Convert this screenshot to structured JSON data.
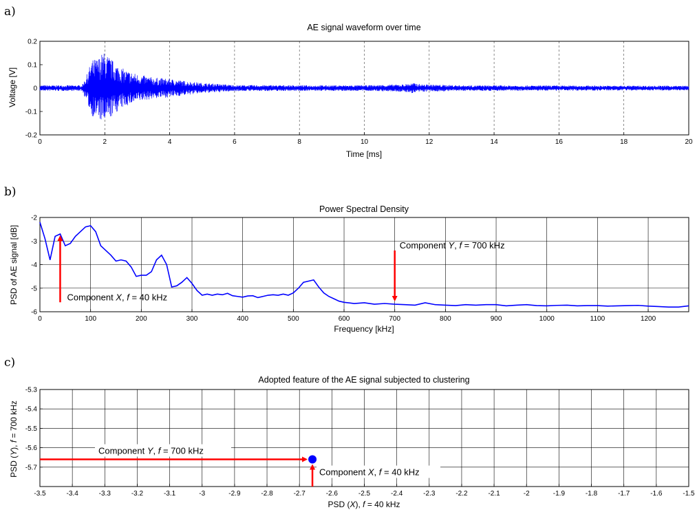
{
  "colors": {
    "series": "#0000ff",
    "arrow": "#ff0000",
    "grid": "#000000"
  },
  "chart_data": [
    {
      "panel_label": "a)",
      "type": "line",
      "title": "AE signal waveform over time",
      "xlabel": "Time [ms]",
      "ylabel": "Voltage [V]",
      "xlim": [
        0,
        20
      ],
      "ylim": [
        -0.2,
        0.2
      ],
      "xticks": [
        0,
        2,
        4,
        6,
        8,
        10,
        12,
        14,
        16,
        18,
        20
      ],
      "yticks": [
        -0.2,
        -0.1,
        0,
        0.1,
        0.2
      ],
      "grid": "dashed vertical",
      "envelope": {
        "t": [
          0,
          1.3,
          1.45,
          1.6,
          1.8,
          1.95,
          2.1,
          2.3,
          2.6,
          3.0,
          3.5,
          4.0,
          4.5,
          5.0,
          5.5,
          6.0,
          8.0,
          10.0,
          11.2,
          11.5,
          11.8,
          13.0,
          16.0,
          20.0
        ],
        "amplitude": [
          0.012,
          0.012,
          0.06,
          0.12,
          0.13,
          0.155,
          0.14,
          0.11,
          0.08,
          0.06,
          0.045,
          0.04,
          0.03,
          0.022,
          0.018,
          0.013,
          0.012,
          0.012,
          0.016,
          0.022,
          0.016,
          0.012,
          0.011,
          0.01
        ]
      }
    },
    {
      "panel_label": "b)",
      "type": "line",
      "title": "Power Spectral Density",
      "xlabel": "Frequency [kHz]",
      "ylabel": "PSD of AE signal [dB]",
      "xlim": [
        0,
        1280
      ],
      "ylim": [
        -6,
        -2
      ],
      "xticks": [
        0,
        100,
        200,
        300,
        400,
        500,
        600,
        700,
        800,
        900,
        1000,
        1100,
        1200
      ],
      "yticks": [
        -6,
        -5,
        -4,
        -3,
        -2
      ],
      "grid": "solid",
      "series": [
        {
          "x": [
            0,
            10,
            20,
            30,
            40,
            50,
            60,
            70,
            80,
            90,
            100,
            110,
            120,
            130,
            140,
            150,
            160,
            170,
            180,
            190,
            200,
            210,
            220,
            230,
            240,
            250,
            260,
            270,
            280,
            290,
            300,
            310,
            320,
            330,
            340,
            350,
            360,
            370,
            380,
            390,
            400,
            410,
            420,
            430,
            440,
            450,
            460,
            470,
            480,
            490,
            500,
            510,
            520,
            530,
            540,
            550,
            560,
            570,
            580,
            590,
            600,
            620,
            640,
            660,
            680,
            700,
            720,
            740,
            760,
            780,
            800,
            820,
            840,
            860,
            880,
            900,
            920,
            940,
            960,
            980,
            1000,
            1020,
            1040,
            1060,
            1080,
            1100,
            1120,
            1140,
            1160,
            1180,
            1200,
            1220,
            1240,
            1260,
            1280
          ],
          "y": [
            -2.2,
            -2.9,
            -3.8,
            -2.8,
            -2.7,
            -3.2,
            -3.1,
            -2.8,
            -2.6,
            -2.4,
            -2.35,
            -2.6,
            -3.2,
            -3.4,
            -3.6,
            -3.85,
            -3.8,
            -3.85,
            -4.1,
            -4.5,
            -4.45,
            -4.45,
            -4.3,
            -3.8,
            -3.6,
            -4.0,
            -4.95,
            -4.9,
            -4.75,
            -4.55,
            -4.8,
            -5.1,
            -5.3,
            -5.25,
            -5.3,
            -5.25,
            -5.28,
            -5.22,
            -5.32,
            -5.35,
            -5.38,
            -5.33,
            -5.32,
            -5.4,
            -5.35,
            -5.3,
            -5.28,
            -5.3,
            -5.25,
            -5.3,
            -5.2,
            -5.0,
            -4.75,
            -4.7,
            -4.65,
            -4.95,
            -5.2,
            -5.35,
            -5.45,
            -5.55,
            -5.6,
            -5.65,
            -5.62,
            -5.68,
            -5.65,
            -5.68,
            -5.7,
            -5.72,
            -5.62,
            -5.7,
            -5.72,
            -5.74,
            -5.7,
            -5.72,
            -5.7,
            -5.7,
            -5.75,
            -5.72,
            -5.7,
            -5.74,
            -5.75,
            -5.73,
            -5.72,
            -5.75,
            -5.74,
            -5.74,
            -5.76,
            -5.75,
            -5.74,
            -5.73,
            -5.76,
            -5.78,
            -5.8,
            -5.8,
            -5.75
          ]
        }
      ],
      "annotations": [
        {
          "text_pre": "Component ",
          "var": "X",
          "text_post": ", ",
          "fvar": "f",
          "text_tail": " = 40 kHz",
          "x": 40,
          "y": -2.7
        },
        {
          "text_pre": "Component ",
          "var": "Y",
          "text_post": ", ",
          "fvar": "f",
          "text_tail": " = 700 kHz",
          "x": 700,
          "y": -5.62
        }
      ]
    },
    {
      "panel_label": "c)",
      "type": "scatter",
      "title": "Adopted feature of the AE signal subjected to clustering",
      "xlabel_pre": "PSD (",
      "xlabel_var": "X",
      "xlabel_mid": "), ",
      "xlabel_fvar": "f",
      "xlabel_tail": " = 40 kHz",
      "ylabel_pre": "PSD (",
      "ylabel_var": "Y",
      "ylabel_mid": "), ",
      "ylabel_fvar": "f",
      "ylabel_tail": " = 700 kHz",
      "xlim": [
        -3.5,
        -1.5
      ],
      "ylim": [
        -5.8,
        -5.3
      ],
      "xticks": [
        -3.5,
        -3.4,
        -3.3,
        -3.2,
        -3.1,
        -3,
        -2.9,
        -2.8,
        -2.7,
        -2.6,
        -2.5,
        -2.4,
        -2.3,
        -2.2,
        -2.1,
        -2,
        -1.9,
        -1.8,
        -1.7,
        -1.6,
        -1.5
      ],
      "yticks": [
        -5.3,
        -5.4,
        -5.5,
        -5.6,
        -5.7
      ],
      "grid": "solid",
      "points": [
        {
          "x": -2.66,
          "y": -5.66
        }
      ],
      "annotations": [
        {
          "text_pre": "Component ",
          "var": "Y",
          "text_post": ", ",
          "fvar": "f",
          "text_tail": " = 700 kHz"
        },
        {
          "text_pre": "Component ",
          "var": "X",
          "text_post": ", ",
          "fvar": "f",
          "text_tail": " = 40 kHz"
        }
      ]
    }
  ]
}
